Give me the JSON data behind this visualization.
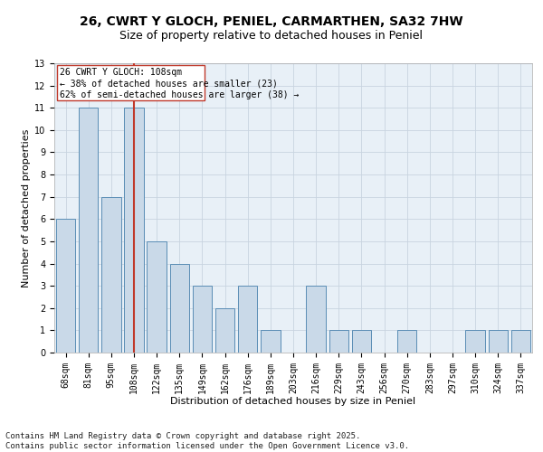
{
  "title1": "26, CWRT Y GLOCH, PENIEL, CARMARTHEN, SA32 7HW",
  "title2": "Size of property relative to detached houses in Peniel",
  "xlabel": "Distribution of detached houses by size in Peniel",
  "ylabel": "Number of detached properties",
  "categories": [
    "68sqm",
    "81sqm",
    "95sqm",
    "108sqm",
    "122sqm",
    "135sqm",
    "149sqm",
    "162sqm",
    "176sqm",
    "189sqm",
    "203sqm",
    "216sqm",
    "229sqm",
    "243sqm",
    "256sqm",
    "270sqm",
    "283sqm",
    "297sqm",
    "310sqm",
    "324sqm",
    "337sqm"
  ],
  "values": [
    6,
    11,
    7,
    11,
    5,
    4,
    3,
    2,
    3,
    1,
    0,
    3,
    1,
    1,
    0,
    1,
    0,
    0,
    1,
    1,
    1
  ],
  "bar_color": "#c9d9e8",
  "bar_edgecolor": "#5a8db5",
  "marker_index": 3,
  "marker_color": "#c0392b",
  "annotation_line1": "26 CWRT Y GLOCH: 108sqm",
  "annotation_line2": "← 38% of detached houses are smaller (23)",
  "annotation_line3": "62% of semi-detached houses are larger (38) →",
  "annotation_box_color": "#c0392b",
  "ylim": [
    0,
    13
  ],
  "yticks": [
    0,
    1,
    2,
    3,
    4,
    5,
    6,
    7,
    8,
    9,
    10,
    11,
    12,
    13
  ],
  "grid_color": "#c8d4e0",
  "background_color": "#e8f0f7",
  "footnote1": "Contains HM Land Registry data © Crown copyright and database right 2025.",
  "footnote2": "Contains public sector information licensed under the Open Government Licence v3.0.",
  "title1_fontsize": 10,
  "title2_fontsize": 9,
  "xlabel_fontsize": 8,
  "ylabel_fontsize": 8,
  "tick_fontsize": 7,
  "annot_fontsize": 7,
  "footnote_fontsize": 6.5
}
